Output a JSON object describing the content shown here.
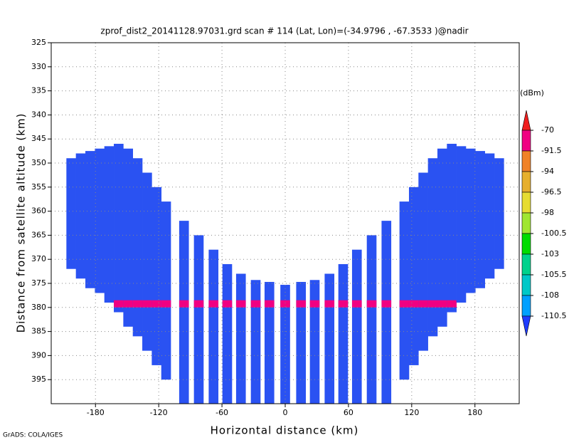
{
  "chart_data": {
    "type": "scan-profile",
    "title": "zprof_dist2_20141128.97031.grd  scan # 114  (Lat, Lon)=(-34.9796 , -67.3533 )@nadir",
    "x_label": "Horizontal distance (km)",
    "y_label": "Distance from satellite altitude (km)",
    "footer": "GrADS: COLA/IGES",
    "xlim": [
      -222,
      222
    ],
    "ylim": [
      400,
      325
    ],
    "xticks": [
      -180,
      -120,
      -60,
      0,
      60,
      120,
      180
    ],
    "yticks": [
      325,
      330,
      335,
      340,
      345,
      350,
      355,
      360,
      365,
      370,
      375,
      380,
      385,
      390,
      395
    ],
    "grid": true,
    "color": "#2a52f2",
    "columns": [
      {
        "x": -203,
        "top": 349,
        "bottom": 372
      },
      {
        "x": -194,
        "top": 348,
        "bottom": 374
      },
      {
        "x": -185,
        "top": 347.5,
        "bottom": 376
      },
      {
        "x": -176,
        "top": 347,
        "bottom": 377
      },
      {
        "x": -167,
        "top": 346.5,
        "bottom": 379
      },
      {
        "x": -158,
        "top": 346,
        "bottom": 381
      },
      {
        "x": -149,
        "top": 347,
        "bottom": 384
      },
      {
        "x": -140,
        "top": 349,
        "bottom": 386
      },
      {
        "x": -131,
        "top": 352,
        "bottom": 389
      },
      {
        "x": -122,
        "top": 355,
        "bottom": 392
      },
      {
        "x": -113,
        "top": 358,
        "bottom": 395
      },
      {
        "x": -96,
        "top": 362,
        "bottom": 400
      },
      {
        "x": -82,
        "top": 365,
        "bottom": 400
      },
      {
        "x": -68,
        "top": 368,
        "bottom": 400
      },
      {
        "x": -55,
        "top": 371,
        "bottom": 400
      },
      {
        "x": -42,
        "top": 373,
        "bottom": 400
      },
      {
        "x": -28,
        "top": 374.3,
        "bottom": 400
      },
      {
        "x": -15,
        "top": 374.7,
        "bottom": 400
      },
      {
        "x": 0,
        "top": 375.3,
        "bottom": 400
      },
      {
        "x": 15,
        "top": 374.7,
        "bottom": 400
      },
      {
        "x": 28,
        "top": 374.3,
        "bottom": 400
      },
      {
        "x": 42,
        "top": 373,
        "bottom": 400
      },
      {
        "x": 55,
        "top": 371,
        "bottom": 400
      },
      {
        "x": 68,
        "top": 368,
        "bottom": 400
      },
      {
        "x": 82,
        "top": 365,
        "bottom": 400
      },
      {
        "x": 96,
        "top": 362,
        "bottom": 400
      },
      {
        "x": 113,
        "top": 358,
        "bottom": 395
      },
      {
        "x": 122,
        "top": 355,
        "bottom": 392
      },
      {
        "x": 131,
        "top": 352,
        "bottom": 389
      },
      {
        "x": 140,
        "top": 349,
        "bottom": 386
      },
      {
        "x": 149,
        "top": 347,
        "bottom": 384
      },
      {
        "x": 158,
        "top": 346,
        "bottom": 381
      },
      {
        "x": 167,
        "top": 346.5,
        "bottom": 379
      },
      {
        "x": 176,
        "top": 347,
        "bottom": 377
      },
      {
        "x": 185,
        "top": 347.5,
        "bottom": 376
      },
      {
        "x": 194,
        "top": 348,
        "bottom": 374
      },
      {
        "x": 203,
        "top": 349,
        "bottom": 372
      }
    ],
    "bright_band": {
      "top": 378.5,
      "bottom": 380,
      "color": "#f00082"
    },
    "colorbar": {
      "unit": "(dBm)",
      "levels": [
        -70,
        -91.5,
        -94,
        -96.5,
        -98,
        -100.5,
        -103,
        -105.5,
        -108,
        -110.5
      ],
      "colors": [
        "#f01e1e",
        "#f00082",
        "#f08228",
        "#e6af2d",
        "#e6dc32",
        "#a0e632",
        "#00dc00",
        "#00d28c",
        "#00c8c8",
        "#00a0ff",
        "#1e3cff"
      ]
    }
  }
}
